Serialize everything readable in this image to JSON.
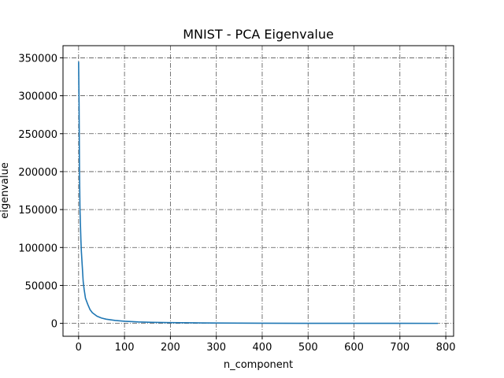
{
  "chart_data": {
    "type": "line",
    "title": "MNIST - PCA Eigenvalue",
    "xlabel": "n_component",
    "ylabel": "eigenvalue",
    "xlim": [
      -34,
      817
    ],
    "ylim": [
      -17000,
      366000
    ],
    "xticks": [
      0,
      100,
      200,
      300,
      400,
      500,
      600,
      700,
      800
    ],
    "yticks": [
      0,
      50000,
      100000,
      150000,
      200000,
      250000,
      300000,
      350000
    ],
    "grid": true,
    "colors": {
      "line": "#1f77b4",
      "grid": "#555555"
    },
    "series": [
      {
        "x": [
          0,
          1,
          2,
          3,
          4,
          5,
          6,
          8,
          10,
          12,
          15,
          20,
          25,
          30,
          40,
          50,
          60,
          80,
          100,
          130,
          160,
          200,
          250,
          300,
          400,
          500,
          600,
          700,
          783
        ],
        "values": [
          345000,
          290000,
          200000,
          150000,
          130000,
          110000,
          95000,
          75000,
          55000,
          45000,
          33000,
          25000,
          18000,
          14000,
          9500,
          7000,
          5500,
          3800,
          2800,
          1900,
          1400,
          1000,
          700,
          450,
          200,
          80,
          30,
          8,
          0
        ]
      }
    ]
  }
}
